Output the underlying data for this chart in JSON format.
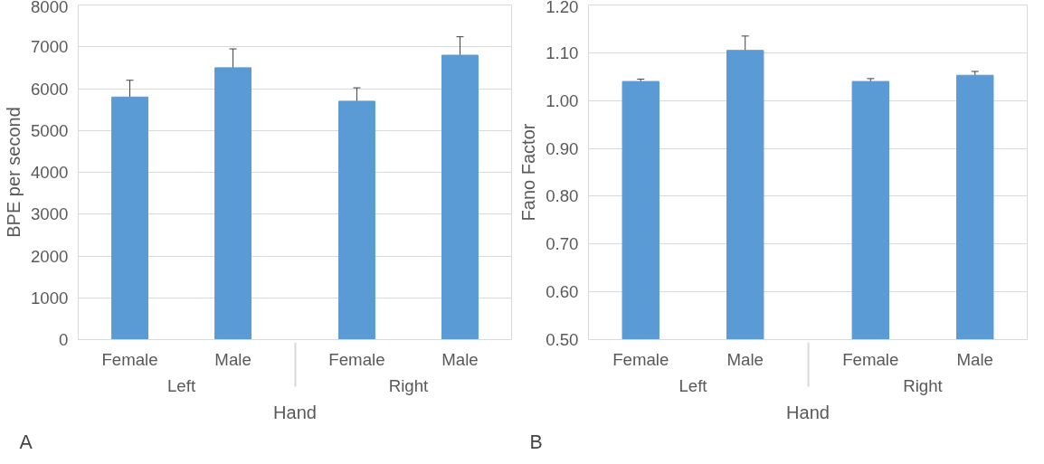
{
  "chart_data": [
    {
      "type": "bar",
      "categories": [
        "Female",
        "Male",
        "Female",
        "Male"
      ],
      "values": [
        5800,
        6500,
        5700,
        6800
      ],
      "errors": [
        400,
        450,
        320,
        440
      ],
      "color": "#5b9bd5",
      "ylabel": "BPE per second",
      "xlabel": "Hand",
      "ylim": [
        0,
        8000
      ],
      "yticks": [
        0,
        1000,
        2000,
        3000,
        4000,
        5000,
        6000,
        7000,
        8000
      ],
      "grid": "y",
      "annotations": [
        "Left",
        "Right",
        "A"
      ]
    },
    {
      "type": "bar",
      "categories": [
        "Female",
        "Male",
        "Female",
        "Male"
      ],
      "values": [
        1.04,
        1.105,
        1.04,
        1.053
      ],
      "errors": [
        0.005,
        0.03,
        0.006,
        0.008
      ],
      "color": "#5b9bd5",
      "ylabel": "Fano Factor",
      "xlabel": "Hand",
      "ylim": [
        0.5,
        1.2
      ],
      "yticks": [
        {
          "value": 0.5,
          "label": "0.50"
        },
        {
          "value": 0.6,
          "label": "0.60"
        },
        {
          "value": 0.7,
          "label": "0.70"
        },
        {
          "value": 0.8,
          "label": "0.80"
        },
        {
          "value": 0.9,
          "label": "0.90"
        },
        {
          "value": 1.0,
          "label": "1.00"
        },
        {
          "value": 1.1,
          "label": "1.10"
        },
        {
          "value": 1.2,
          "label": "1.20"
        }
      ],
      "grid": "y",
      "annotations": [
        "Left",
        "Right",
        "B"
      ]
    }
  ]
}
